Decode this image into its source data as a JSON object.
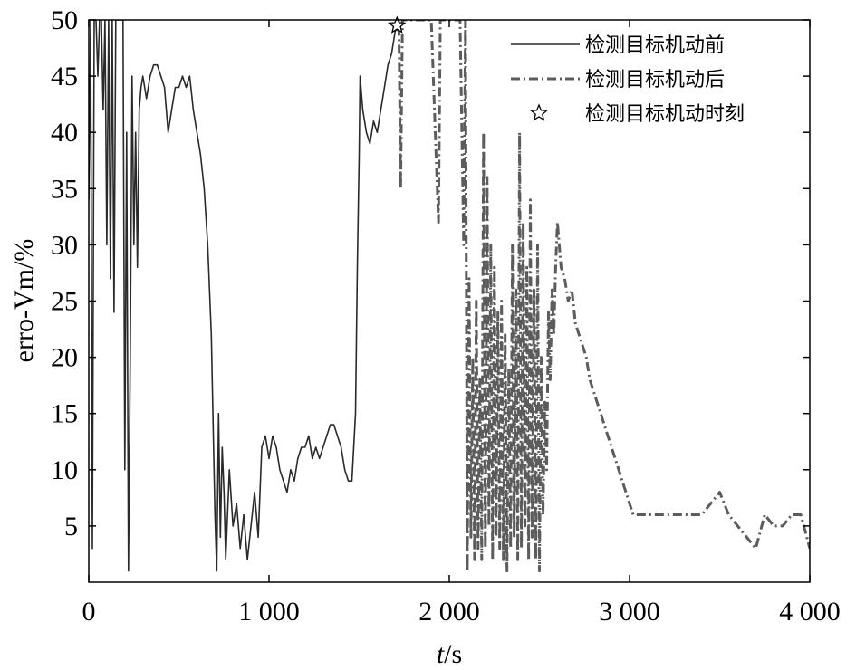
{
  "chart_data": {
    "type": "line",
    "title": "",
    "xlabel_italic": "t",
    "xlabel_unit": "/s",
    "ylabel": "erro-Vm/%",
    "xlim": [
      0,
      4000
    ],
    "ylim": [
      0,
      50
    ],
    "x_ticks": [
      0,
      1000,
      2000,
      3000,
      4000
    ],
    "x_tick_labels": [
      "0",
      "1 000",
      "2 000",
      "3 000",
      "4 000"
    ],
    "y_ticks": [
      5,
      10,
      15,
      20,
      25,
      30,
      35,
      40,
      45,
      50
    ],
    "y_tick_labels": [
      "5",
      "10",
      "15",
      "20",
      "25",
      "30",
      "35",
      "40",
      "45",
      "50"
    ],
    "grid": false,
    "legend_position": "top-right",
    "series": [
      {
        "name": "检测目标机动前",
        "style": "solid",
        "color": "#2a2a2a",
        "x": [
          0,
          10,
          20,
          30,
          40,
          50,
          60,
          70,
          80,
          90,
          100,
          110,
          120,
          130,
          140,
          150,
          160,
          170,
          180,
          190,
          200,
          210,
          220,
          230,
          240,
          250,
          260,
          270,
          280,
          290,
          300,
          320,
          340,
          360,
          380,
          400,
          420,
          440,
          460,
          480,
          500,
          520,
          540,
          560,
          580,
          600,
          620,
          640,
          660,
          680,
          700,
          710,
          720,
          730,
          740,
          750,
          760,
          780,
          800,
          820,
          840,
          860,
          880,
          900,
          920,
          940,
          960,
          980,
          1000,
          1020,
          1040,
          1060,
          1080,
          1100,
          1120,
          1140,
          1160,
          1180,
          1200,
          1220,
          1240,
          1260,
          1280,
          1300,
          1320,
          1340,
          1360,
          1380,
          1400,
          1420,
          1440,
          1460,
          1480,
          1490,
          1500,
          1505,
          1510,
          1520,
          1540,
          1560,
          1580,
          1600,
          1620,
          1640,
          1660,
          1680,
          1700,
          1710
        ],
        "y": [
          34,
          50,
          3,
          50,
          50,
          45,
          50,
          50,
          42,
          50,
          30,
          50,
          27,
          50,
          24,
          50,
          50,
          50,
          50,
          50,
          10,
          40,
          1,
          20,
          45,
          30,
          40,
          28,
          42,
          44,
          45,
          43,
          45,
          46,
          46,
          45,
          44,
          40,
          42,
          44,
          44,
          45,
          44,
          45,
          42,
          40,
          38,
          35,
          30,
          22,
          6,
          1,
          15,
          4,
          12,
          8,
          2,
          10,
          5,
          7,
          3,
          6,
          2,
          5,
          8,
          4,
          12,
          13,
          11,
          13,
          12,
          10,
          9,
          8,
          10,
          9,
          11,
          12,
          12,
          13,
          11,
          12,
          11,
          12,
          13,
          14,
          14,
          13,
          12,
          10,
          9,
          9,
          15,
          28,
          38,
          45,
          44,
          42,
          40,
          39,
          41,
          40,
          42,
          44,
          46,
          47,
          49,
          50
        ]
      },
      {
        "name": "检测目标机动后",
        "style": "dashdot",
        "color": "#5c5c5c",
        "x": [
          1710,
          1720,
          1730,
          1740,
          1750,
          1760,
          1800,
          1850,
          1900,
          1940,
          1950,
          1960,
          1970,
          2000,
          2040,
          2060,
          2080,
          2090,
          2100,
          2110,
          2120,
          2130,
          2140,
          2150,
          2160,
          2170,
          2180,
          2190,
          2200,
          2210,
          2220,
          2230,
          2240,
          2250,
          2260,
          2270,
          2280,
          2290,
          2300,
          2310,
          2320,
          2330,
          2340,
          2350,
          2360,
          2370,
          2380,
          2390,
          2400,
          2410,
          2420,
          2430,
          2440,
          2450,
          2460,
          2470,
          2480,
          2490,
          2500,
          2510,
          2520,
          2530,
          2540,
          2550,
          2560,
          2570,
          2580,
          2590,
          2600,
          2610,
          2620,
          2640,
          2660,
          2680,
          2700,
          2720,
          2740,
          2760,
          2780,
          2800,
          2820,
          2840,
          2860,
          2880,
          2900,
          2920,
          2940,
          2960,
          2980,
          3000,
          3020,
          3060,
          3100,
          3150,
          3200,
          3250,
          3300,
          3350,
          3400,
          3450,
          3500,
          3550,
          3600,
          3650,
          3700,
          3750,
          3800,
          3850,
          3900,
          3950,
          4000
        ],
        "y": [
          49,
          50,
          35,
          50,
          50,
          50,
          50,
          50,
          50,
          32,
          50,
          50,
          50,
          50,
          50,
          50,
          30,
          50,
          1,
          27,
          4,
          20,
          2,
          25,
          3,
          18,
          2,
          40,
          3,
          36,
          5,
          30,
          2,
          28,
          4,
          24,
          3,
          25,
          2,
          22,
          1,
          19,
          3,
          30,
          4,
          26,
          2,
          40,
          3,
          32,
          5,
          28,
          2,
          34,
          4,
          26,
          2,
          30,
          1,
          20,
          6,
          16,
          10,
          24,
          18,
          26,
          22,
          28,
          32,
          30,
          28,
          27,
          25,
          26,
          23,
          22,
          21,
          20,
          18,
          17,
          16,
          15,
          14,
          13,
          12,
          11,
          10,
          9,
          8,
          7,
          6,
          6,
          6,
          6,
          6,
          6,
          6,
          6,
          6,
          7,
          8,
          6,
          5,
          4,
          3,
          6,
          5,
          5,
          6,
          6,
          3
        ]
      },
      {
        "name": "检测目标机动时刻",
        "style": "star",
        "color": "#000000",
        "x": [
          1710
        ],
        "y": [
          49.5
        ]
      }
    ]
  }
}
